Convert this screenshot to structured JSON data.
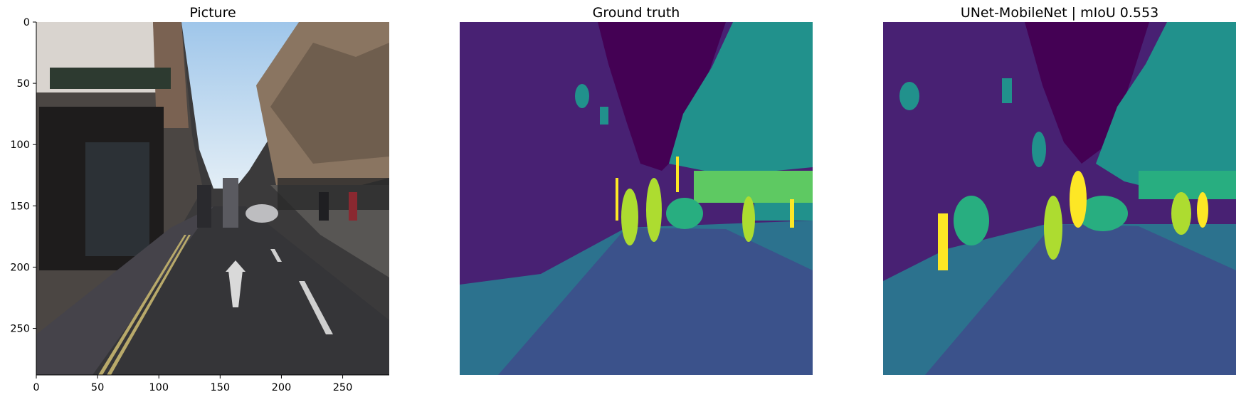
{
  "figure": {
    "panels": [
      {
        "id": "picture",
        "title": "Picture",
        "axes_visible": true
      },
      {
        "id": "ground-truth",
        "title": "Ground truth",
        "axes_visible": false
      },
      {
        "id": "prediction",
        "title": "UNet-MobileNet | mIoU 0.553",
        "axes_visible": false
      }
    ]
  },
  "chart_data": {
    "type": "heatmap",
    "xlim": [
      0,
      288
    ],
    "ylim": [
      288,
      0
    ],
    "x_ticks": [
      0,
      50,
      100,
      150,
      200,
      250
    ],
    "y_ticks": [
      0,
      50,
      100,
      150,
      200,
      250
    ],
    "grid": false,
    "colormap": "viridis",
    "class_colors": {
      "sky": "#440154",
      "building": "#482173",
      "road": "#3b528b",
      "sidewalk": "#2c728e",
      "vegetation": "#21918c",
      "car": "#28ae80",
      "fence": "#5ec962",
      "pedestrian": "#addc30",
      "pole": "#fde725"
    }
  }
}
